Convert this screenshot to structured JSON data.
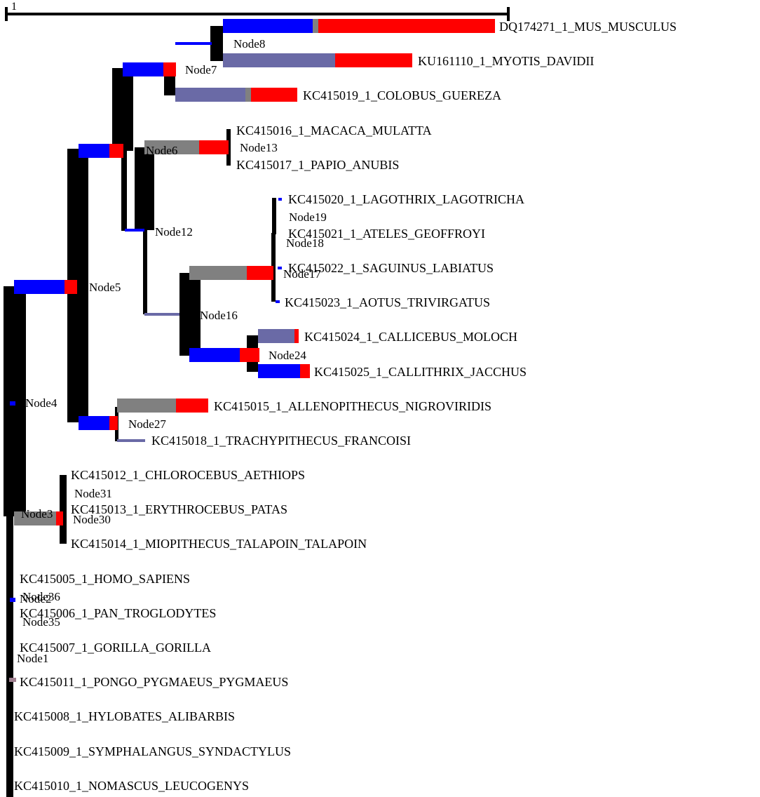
{
  "scale_bar": {
    "label": "1"
  },
  "colors": {
    "branch": "#000000",
    "blue": "#0000ff",
    "red": "#ff0000",
    "grey": "#808080",
    "slate": "#6a6aa6",
    "mauve": "#a08090"
  },
  "leaves": [
    "DQ174271_1_MUS_MUSCULUS",
    "KU161110_1_MYOTIS_DAVIDII",
    "KC415019_1_COLOBUS_GUEREZA",
    "KC415016_1_MACACA_MULATTA",
    "KC415017_1_PAPIO_ANUBIS",
    "KC415020_1_LAGOTHRIX_LAGOTRICHA",
    "KC415021_1_ATELES_GEOFFROYI",
    "KC415022_1_SAGUINUS_LABIATUS",
    "KC415023_1_AOTUS_TRIVIRGATUS",
    "KC415024_1_CALLICEBUS_MOLOCH",
    "KC415025_1_CALLITHRIX_JACCHUS",
    "KC415015_1_ALLENOPITHECUS_NIGROVIRIDIS",
    "KC415018_1_TRACHYPITHECUS_FRANCOISI",
    "KC415012_1_CHLOROCEBUS_AETHIOPS",
    "KC415013_1_ERYTHROCEBUS_PATAS",
    "KC415014_1_MIOPITHECUS_TALAPOIN_TALAPOIN",
    "KC415005_1_HOMO_SAPIENS",
    "KC415006_1_PAN_TROGLODYTES",
    "KC415007_1_GORILLA_GORILLA",
    "KC415011_1_PONGO_PYGMAEUS_PYGMAEUS",
    "KC415008_1_HYLOBATES_ALIBARBIS",
    "KC415009_1_SYMPHALANGUS_SYNDACTYLUS",
    "KC415010_1_NOMASCUS_LEUCOGENYS"
  ],
  "nodes": [
    "Node1",
    "Node2",
    "Node3",
    "Node4",
    "Node5",
    "Node6",
    "Node7",
    "Node8",
    "Node12",
    "Node13",
    "Node16",
    "Node17",
    "Node18",
    "Node19",
    "Node24",
    "Node27",
    "Node30",
    "Node31",
    "Node35",
    "Node36"
  ]
}
